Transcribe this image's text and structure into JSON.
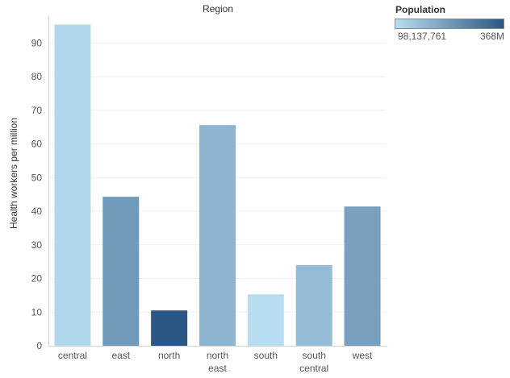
{
  "chart_data": {
    "type": "bar",
    "title": "Region",
    "xlabel": "",
    "ylabel": "Health workers per million",
    "categories": [
      "central",
      "east",
      "north",
      "north\neast",
      "south",
      "south\ncentral",
      "west"
    ],
    "values": [
      95.5,
      44.3,
      10.5,
      65.6,
      15.3,
      24.0,
      41.4
    ],
    "population_shade": [
      0.05,
      0.5,
      1.0,
      0.3,
      0.0,
      0.25,
      0.45
    ],
    "ylim": [
      0,
      98
    ],
    "yticks": [
      0,
      10,
      20,
      30,
      40,
      50,
      60,
      70,
      80,
      90
    ],
    "grid": true,
    "legend": {
      "title": "Population",
      "min_label": "98,137,761",
      "max_label": "368M",
      "placement": "top-right"
    },
    "colors": {
      "gradient_start": "#b9ddf0",
      "gradient_end": "#2a5783",
      "gridline": "#efefef",
      "axis": "#d4d4d4",
      "text": "#555555"
    }
  }
}
